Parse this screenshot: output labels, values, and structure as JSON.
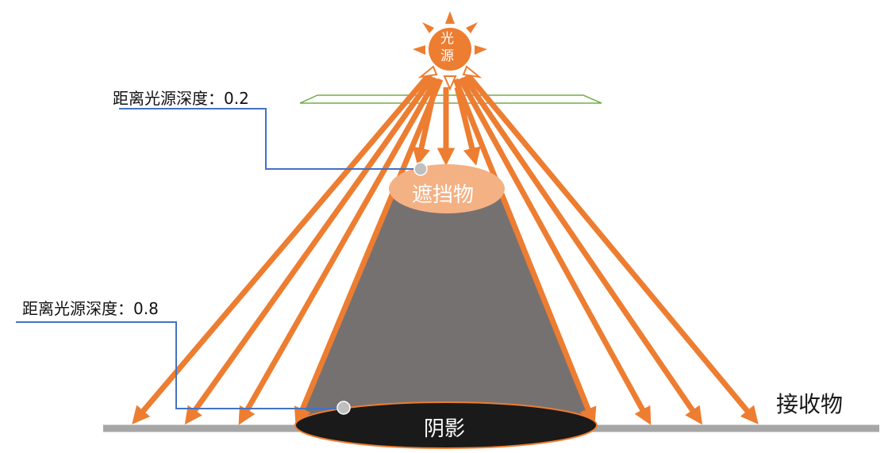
{
  "light_source": {
    "label_line1": "光",
    "label_line2": "源"
  },
  "occluder": {
    "label": "遮挡物"
  },
  "shadow": {
    "label": "阴影"
  },
  "receiver": {
    "label": "接收物"
  },
  "depth_labels": [
    {
      "text": "距离光源深度：0.2"
    },
    {
      "text": "距离光源深度：0.8"
    }
  ],
  "colors": {
    "ray": "#ED7D31",
    "sun": "#ED7D31",
    "occluder": "#F4B183",
    "cone": "#767171",
    "shadow": "#1a1a1a",
    "ground": "#A6A6A6",
    "leader": "#4472C4",
    "plane": "#70AD47",
    "marker": "#BFBFBF"
  }
}
